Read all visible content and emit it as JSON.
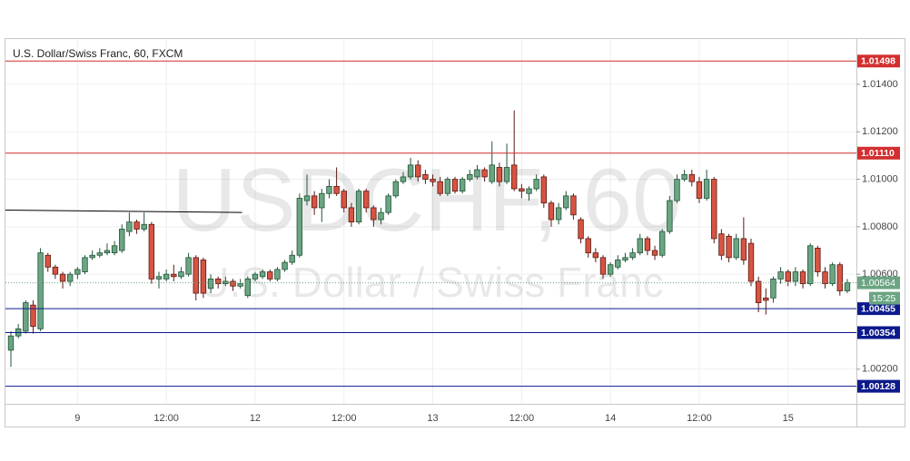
{
  "chart_data": {
    "type": "candlestick",
    "title": "U.S. Dollar/Swiss Franc, 60, FXCM",
    "watermark": "USDCHF, 60",
    "watermark_subtitle": "U.S. Dollar / Swiss Franc",
    "categories": [
      null,
      null,
      null,
      null,
      null,
      null,
      null,
      null,
      null,
      "9",
      null,
      null,
      null,
      null,
      null,
      null,
      null,
      null,
      null,
      null,
      null,
      "12:00",
      null,
      null,
      null,
      null,
      null,
      null,
      null,
      null,
      null,
      null,
      null,
      "12",
      null,
      null,
      null,
      null,
      null,
      null,
      null,
      null,
      null,
      null,
      null,
      "12:00",
      null,
      null,
      null,
      null,
      null,
      null,
      null,
      null,
      null,
      null,
      null,
      "13",
      null,
      null,
      null,
      null,
      null,
      null,
      null,
      null,
      null,
      null,
      null,
      "12:00",
      null,
      null,
      null,
      null,
      null,
      null,
      null,
      null,
      null,
      null,
      null,
      "14",
      null,
      null,
      null,
      null,
      null,
      null,
      null,
      null,
      null,
      null,
      null,
      "12:00",
      null,
      null,
      null,
      null,
      null,
      null,
      null,
      null,
      null,
      null,
      null,
      "15",
      null,
      null,
      null,
      null,
      null,
      null,
      null,
      null
    ],
    "open": [
      1.0028,
      1.0034,
      1.0036,
      1.0047,
      1.0037,
      1.0068,
      1.0063,
      1.006,
      1.0057,
      1.006,
      1.0061,
      1.0067,
      1.0068,
      1.0069,
      1.0069,
      1.007,
      1.0078,
      1.0082,
      1.0079,
      1.0081,
      1.0058,
      1.0058,
      1.006,
      1.0059,
      1.006,
      1.0067,
      1.0066,
      1.0054,
      1.0058,
      1.0056,
      1.0057,
      1.0055,
      1.0051,
      1.0058,
      1.0059,
      1.0061,
      1.0058,
      1.0062,
      1.0065,
      1.0068,
      1.0091,
      1.0093,
      1.0088,
      1.0094,
      1.0097,
      1.0095,
      1.0088,
      1.0082,
      1.0095,
      1.0088,
      1.0083,
      1.0086,
      1.0093,
      1.0099,
      1.0101,
      1.0106,
      1.0102,
      1.01,
      1.0099,
      1.0094,
      1.01,
      1.0095,
      1.01,
      1.0101,
      1.0104,
      1.0099,
      1.0105,
      1.0099,
      1.0106,
      1.0096,
      1.0094,
      1.0096,
      1.0101,
      1.009,
      1.0083,
      1.0088,
      1.0093,
      1.0083,
      1.0075,
      1.0069,
      1.0067,
      1.006,
      1.0063,
      1.0066,
      1.0067,
      1.0069,
      1.0075,
      1.007,
      1.0068,
      1.0078,
      1.0091,
      1.01,
      1.0102,
      1.0099,
      1.0092,
      1.01,
      1.0077,
      1.0076,
      1.0067,
      1.0075,
      1.0073,
      1.0057,
      1.005,
      1.005,
      1.0058,
      1.0061,
      1.0057,
      1.0061,
      1.0056,
      1.0071,
      1.0061,
      1.0056,
      1.0064,
      1.0053
    ],
    "high": [
      1.0036,
      1.0039,
      1.0049,
      1.0049,
      1.0071,
      1.0069,
      1.0064,
      1.0061,
      1.0061,
      1.0063,
      1.0068,
      1.007,
      1.0071,
      1.0073,
      1.0074,
      1.0081,
      1.0086,
      1.0083,
      1.0086,
      1.0082,
      1.0061,
      1.0062,
      1.0064,
      1.0063,
      1.0069,
      1.0068,
      1.0067,
      1.006,
      1.0059,
      1.0059,
      1.0058,
      1.0058,
      1.0059,
      1.0061,
      1.0062,
      1.0062,
      1.0063,
      1.0066,
      1.007,
      1.0094,
      1.0102,
      1.0095,
      1.0096,
      1.01,
      1.0105,
      1.0096,
      1.009,
      1.0096,
      1.0096,
      1.0089,
      1.0088,
      1.0094,
      1.01,
      1.0103,
      1.0109,
      1.0108,
      1.0104,
      1.0102,
      1.0101,
      1.0101,
      1.0101,
      1.0101,
      1.0104,
      1.0106,
      1.0105,
      1.0116,
      1.0107,
      1.0115,
      1.0129,
      1.0098,
      1.0097,
      1.0102,
      1.0102,
      1.0091,
      1.009,
      1.0095,
      1.0094,
      1.0084,
      1.0076,
      1.0071,
      1.0068,
      1.0065,
      1.0068,
      1.0069,
      1.0071,
      1.0077,
      1.0076,
      1.0072,
      1.0079,
      1.0093,
      1.0102,
      1.0104,
      1.0104,
      1.0101,
      1.0104,
      1.0101,
      1.0079,
      1.0077,
      1.0077,
      1.0084,
      1.0075,
      1.0059,
      1.0054,
      1.0059,
      1.0063,
      1.0062,
      1.0063,
      1.0062,
      1.0073,
      1.0072,
      1.0063,
      1.0065,
      1.0065,
      1.0058
    ],
    "low": [
      1.0021,
      1.0033,
      1.0035,
      1.0035,
      1.0036,
      1.0061,
      1.0058,
      1.0054,
      1.0055,
      1.0058,
      1.006,
      1.0066,
      1.0067,
      1.0068,
      1.0068,
      1.0069,
      1.0076,
      1.0077,
      1.0078,
      1.0056,
      1.0054,
      1.0057,
      1.0057,
      1.0058,
      1.0059,
      1.0049,
      1.005,
      1.0052,
      1.0054,
      1.0055,
      1.0053,
      1.0054,
      1.005,
      1.0057,
      1.0058,
      1.0057,
      1.0057,
      1.0061,
      1.0064,
      1.0067,
      1.0089,
      1.0085,
      1.0082,
      1.0092,
      1.0093,
      1.0086,
      1.008,
      1.0081,
      1.0086,
      1.008,
      1.0081,
      1.0085,
      1.0092,
      1.0098,
      1.01,
      1.0099,
      1.0098,
      1.0097,
      1.0093,
      1.0093,
      1.0094,
      1.0094,
      1.0099,
      1.01,
      1.0099,
      1.0098,
      1.0097,
      1.0098,
      1.0095,
      1.0092,
      1.0091,
      1.0095,
      1.0088,
      1.008,
      1.0081,
      1.0087,
      1.0083,
      1.0073,
      1.0067,
      1.0065,
      1.0058,
      1.0059,
      1.0062,
      1.0065,
      1.0066,
      1.0068,
      1.0068,
      1.0066,
      1.0067,
      1.0077,
      1.009,
      1.0099,
      1.0097,
      1.009,
      1.0091,
      1.0073,
      1.0066,
      1.0065,
      1.0066,
      1.0064,
      1.0055,
      1.0044,
      1.0043,
      1.0048,
      1.0056,
      1.0055,
      1.0055,
      1.0054,
      1.0055,
      1.0059,
      1.0054,
      1.0055,
      1.0051,
      1.0052
    ],
    "close": [
      1.0034,
      1.0037,
      1.0048,
      1.0038,
      1.0069,
      1.0063,
      1.006,
      1.0057,
      1.006,
      1.0062,
      1.0067,
      1.0068,
      1.0069,
      1.007,
      1.0072,
      1.0079,
      1.0082,
      1.0079,
      1.0081,
      1.0058,
      1.0059,
      1.006,
      1.0059,
      1.0061,
      1.0067,
      1.0052,
      1.0052,
      1.0058,
      1.0056,
      1.0057,
      1.0055,
      1.0056,
      1.0058,
      1.006,
      1.0061,
      1.0058,
      1.0062,
      1.0065,
      1.0068,
      1.0092,
      1.0093,
      1.0088,
      1.0094,
      1.0097,
      1.0094,
      1.0088,
      1.0082,
      1.0095,
      1.0088,
      1.0083,
      1.0086,
      1.0093,
      1.0099,
      1.0101,
      1.0106,
      1.0101,
      1.01,
      1.0099,
      1.0094,
      1.01,
      1.0095,
      1.01,
      1.0102,
      1.0104,
      1.0101,
      1.0106,
      1.0099,
      1.0105,
      1.0096,
      1.0095,
      1.0096,
      1.01,
      1.009,
      1.0083,
      1.0088,
      1.0093,
      1.0085,
      1.0075,
      1.0069,
      1.0067,
      1.006,
      1.0064,
      1.0066,
      1.0067,
      1.0069,
      1.0075,
      1.007,
      1.0068,
      1.0078,
      1.0091,
      1.01,
      1.0102,
      1.0099,
      1.0092,
      1.01,
      1.0075,
      1.0068,
      1.0067,
      1.0075,
      1.0066,
      1.0057,
      1.0048,
      1.0049,
      1.0058,
      1.0061,
      1.0057,
      1.0061,
      1.0056,
      1.0072,
      1.0061,
      1.0056,
      1.0064,
      1.0053,
      1.00564
    ],
    "up_color": "#6ba583",
    "up_border": "#225437",
    "down_color": "#d75442",
    "down_border": "#5b1a13",
    "ylim": [
      1.00054,
      1.01587
    ],
    "yticks": [
      {
        "value": 1.002,
        "label": "1.00200"
      },
      {
        "value": 1.006,
        "label": "1.00600"
      },
      {
        "value": 1.008,
        "label": "1.00800"
      },
      {
        "value": 1.01,
        "label": "1.01000"
      },
      {
        "value": 1.012,
        "label": "1.01200"
      },
      {
        "value": 1.014,
        "label": "1.01400"
      }
    ],
    "grid": true,
    "levels": [
      {
        "value": 1.01498,
        "color": "#d32f2f"
      },
      {
        "value": 1.0111,
        "label": "1.01110",
        "color": "#d32f2f"
      },
      {
        "value": 1.00455,
        "color": "#0d1a8c"
      },
      {
        "value": 1.00354,
        "color": "#0d1a8c"
      },
      {
        "value": 1.00128,
        "color": "#0d1a8c"
      }
    ],
    "trendline": {
      "x": [
        0,
        31
      ],
      "y": [
        1.0087,
        1.0086
      ],
      "color": "#000000"
    },
    "last_price": 1.00564,
    "last_price_color": "#6ba583",
    "countdown": "15:25"
  }
}
